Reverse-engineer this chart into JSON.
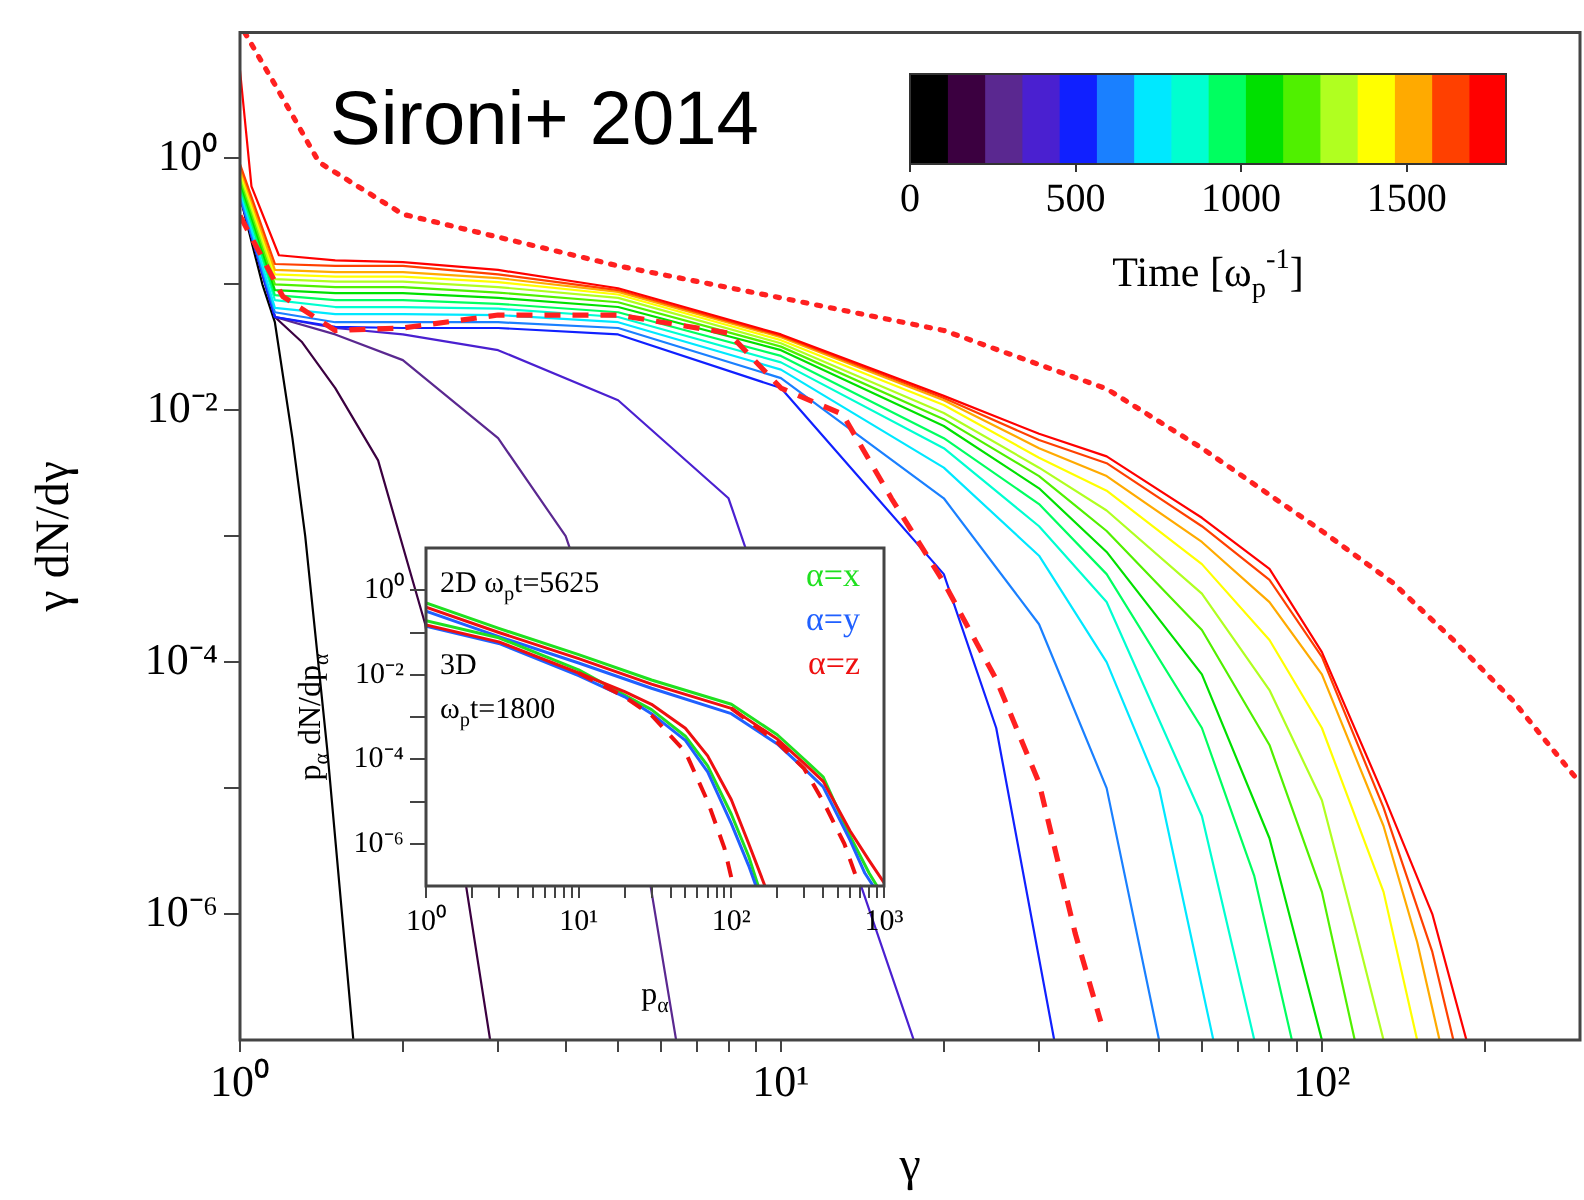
{
  "chart_data": [
    {
      "type": "line",
      "xlabel": "γ",
      "ylabel": "γ dN/dγ",
      "log": "xy",
      "marker": "none",
      "annotations": [
        "Sironi+ 2014"
      ],
      "xlim": [
        1,
        300
      ],
      "ylim": [
        1e-07,
        10
      ],
      "xticks": [
        {
          "value": 1,
          "label": "10⁰"
        },
        {
          "value": 2,
          "label": null
        },
        {
          "value": 3,
          "label": null
        },
        {
          "value": 4,
          "label": null
        },
        {
          "value": 5,
          "label": null
        },
        {
          "value": 6,
          "label": null
        },
        {
          "value": 7,
          "label": null
        },
        {
          "value": 8,
          "label": null
        },
        {
          "value": 9,
          "label": null
        },
        {
          "value": 10,
          "label": "10¹"
        },
        {
          "value": 20,
          "label": null
        },
        {
          "value": 30,
          "label": null
        },
        {
          "value": 40,
          "label": null
        },
        {
          "value": 50,
          "label": null
        },
        {
          "value": 60,
          "label": null
        },
        {
          "value": 70,
          "label": null
        },
        {
          "value": 80,
          "label": null
        },
        {
          "value": 90,
          "label": null
        },
        {
          "value": 100,
          "label": "10²"
        },
        {
          "value": 200,
          "label": null
        }
      ],
      "yticks": [
        {
          "value": 1,
          "label": "10⁰"
        },
        {
          "value": 0.1,
          "label": null
        },
        {
          "value": 0.01,
          "label": "10⁻²"
        },
        {
          "value": 0.001,
          "label": null
        },
        {
          "value": 0.0001,
          "label": "10⁻⁴"
        },
        {
          "value": 1e-05,
          "label": null
        },
        {
          "value": 1e-06,
          "label": "10⁻⁶"
        }
      ],
      "series": [
        {
          "color": "#000000",
          "x": [
            1,
            1.1,
            1.16,
            1.25,
            1.32,
            1.45,
            1.62
          ],
          "values": [
            0.5,
            0.1,
            0.05,
            0.006,
            0.001,
            2e-05,
            1e-07
          ]
        },
        {
          "color": "#3b0040",
          "x": [
            1,
            1.16,
            1.3,
            1.5,
            1.8,
            2.2,
            2.9
          ],
          "values": [
            0.5,
            0.055,
            0.035,
            0.015,
            0.004,
            0.0002,
            1e-07
          ]
        },
        {
          "color": "#5a2890",
          "x": [
            1,
            1.16,
            1.5,
            2,
            3,
            4,
            5,
            6.4
          ],
          "values": [
            0.5,
            0.055,
            0.04,
            0.025,
            0.006,
            0.001,
            6e-05,
            1e-07
          ]
        },
        {
          "color": "#4a20d0",
          "x": [
            1,
            1.16,
            1.5,
            2,
            3,
            5,
            8,
            17.6
          ],
          "values": [
            0.5,
            0.055,
            0.045,
            0.04,
            0.03,
            0.012,
            0.002,
            1e-07
          ]
        },
        {
          "color": "#1020ff",
          "x": [
            1,
            1.16,
            1.5,
            2,
            3,
            5,
            10,
            20,
            25,
            32
          ],
          "values": [
            0.5,
            0.055,
            0.046,
            0.045,
            0.045,
            0.04,
            0.015,
            0.0005,
            3e-05,
            1e-07
          ]
        },
        {
          "color": "#1a80ff",
          "x": [
            1,
            1.16,
            1.5,
            2,
            3,
            5,
            10,
            20,
            30,
            40,
            50
          ],
          "values": [
            0.5,
            0.06,
            0.05,
            0.05,
            0.05,
            0.045,
            0.018,
            0.002,
            0.0002,
            1e-05,
            1e-07
          ]
        },
        {
          "color": "#00e8ff",
          "x": [
            1,
            1.16,
            1.5,
            2,
            3,
            5,
            10,
            20,
            30,
            40,
            50,
            63
          ],
          "values": [
            0.55,
            0.065,
            0.058,
            0.058,
            0.057,
            0.05,
            0.021,
            0.0035,
            0.0007,
            0.0001,
            1e-05,
            1e-07
          ]
        },
        {
          "color": "#00ffd0",
          "x": [
            1,
            1.16,
            1.5,
            2,
            3,
            5,
            10,
            20,
            30,
            40,
            60,
            75
          ],
          "values": [
            0.6,
            0.075,
            0.066,
            0.066,
            0.064,
            0.055,
            0.024,
            0.005,
            0.0012,
            0.0003,
            6e-06,
            1e-07
          ]
        },
        {
          "color": "#00ff60",
          "x": [
            1,
            1.16,
            1.5,
            2,
            3,
            5,
            10,
            20,
            30,
            40,
            60,
            75,
            88
          ],
          "values": [
            0.6,
            0.082,
            0.075,
            0.075,
            0.07,
            0.06,
            0.027,
            0.006,
            0.0018,
            0.0005,
            3e-05,
            2e-06,
            1e-07
          ]
        },
        {
          "color": "#00e000",
          "x": [
            1,
            1.16,
            1.5,
            2,
            3,
            5,
            10,
            20,
            30,
            40,
            60,
            80,
            100
          ],
          "values": [
            0.65,
            0.09,
            0.085,
            0.085,
            0.078,
            0.066,
            0.03,
            0.0075,
            0.0024,
            0.00075,
            8e-05,
            4e-06,
            1e-07
          ]
        },
        {
          "color": "#50f000",
          "x": [
            1,
            1.16,
            1.5,
            2,
            3,
            5,
            10,
            20,
            30,
            40,
            60,
            80,
            100,
            115
          ],
          "values": [
            0.7,
            0.1,
            0.095,
            0.095,
            0.086,
            0.072,
            0.032,
            0.0085,
            0.003,
            0.0011,
            0.00018,
            2.2e-05,
            1.5e-06,
            1e-07
          ]
        },
        {
          "color": "#b0ff20",
          "x": [
            1,
            1.16,
            1.5,
            2,
            3,
            5,
            10,
            20,
            30,
            40,
            60,
            80,
            100,
            115,
            130
          ],
          "values": [
            0.75,
            0.11,
            0.105,
            0.105,
            0.095,
            0.078,
            0.034,
            0.0095,
            0.0035,
            0.0016,
            0.00035,
            6e-05,
            8e-06,
            8e-07,
            1e-07
          ]
        },
        {
          "color": "#ffff00",
          "x": [
            1,
            1.16,
            1.5,
            2,
            3,
            5,
            10,
            20,
            30,
            40,
            60,
            80,
            100,
            130,
            150
          ],
          "values": [
            0.8,
            0.12,
            0.115,
            0.115,
            0.104,
            0.083,
            0.036,
            0.011,
            0.0042,
            0.0023,
            0.0006,
            0.00015,
            3e-05,
            1.5e-06,
            1e-07
          ]
        },
        {
          "color": "#ffaa00",
          "x": [
            1,
            1.16,
            1.5,
            2,
            3,
            5,
            10,
            20,
            30,
            40,
            60,
            80,
            100,
            130,
            150,
            165
          ],
          "values": [
            0.85,
            0.13,
            0.125,
            0.125,
            0.112,
            0.087,
            0.038,
            0.012,
            0.005,
            0.003,
            0.0009,
            0.0003,
            8e-05,
            5e-06,
            6e-07,
            1e-07
          ]
        },
        {
          "color": "#ff4000",
          "x": [
            1,
            1.16,
            1.5,
            2,
            3,
            5,
            10,
            20,
            30,
            40,
            60,
            80,
            100,
            130,
            160,
            175
          ],
          "values": [
            0.9,
            0.145,
            0.14,
            0.14,
            0.12,
            0.09,
            0.039,
            0.0125,
            0.0058,
            0.0038,
            0.0012,
            0.00045,
            0.00011,
            7e-06,
            5e-07,
            1e-07
          ]
        },
        {
          "color": "#ff0000",
          "x": [
            1,
            1.05,
            1.18,
            1.5,
            2,
            3,
            5,
            10,
            20,
            30,
            40,
            60,
            80,
            100,
            130,
            160,
            185
          ],
          "values": [
            5,
            0.6,
            0.17,
            0.155,
            0.15,
            0.13,
            0.093,
            0.04,
            0.013,
            0.0065,
            0.0043,
            0.0014,
            0.00055,
            0.00012,
            8.8e-06,
            1e-06,
            1e-07
          ]
        },
        {
          "color": "#ff2020",
          "line_style": "dashed",
          "x": [
            1,
            1.2,
            1.5,
            2,
            3,
            5,
            8,
            10,
            13,
            16,
            20,
            25,
            30,
            35,
            39
          ],
          "values": [
            0.35,
            0.08,
            0.043,
            0.045,
            0.057,
            0.057,
            0.041,
            0.015,
            0.0093,
            0.002,
            0.00043,
            7.3e-05,
            1.1e-05,
            7e-07,
            1.4e-07
          ]
        },
        {
          "color": "#ff2020",
          "line_style": "dotted",
          "x": [
            1.02,
            1.18,
            1.4,
            2,
            5,
            10,
            20,
            40,
            60,
            100,
            135,
            175,
            225,
            300
          ],
          "values": [
            10,
            3.4,
            0.93,
            0.36,
            0.14,
            0.078,
            0.043,
            0.0148,
            0.005,
            0.0011,
            0.00043,
            0.00015,
            5e-05,
            1.1e-05
          ]
        }
      ]
    },
    {
      "type": "line",
      "xlabel": "p$_{α}$",
      "ylabel": "p$_{α}$ dN/dp$_{α}$",
      "log": "xy",
      "marker": "none",
      "legend": "top right",
      "annotations": [
        "2D ω$_{p}$t=5625",
        "3D",
        "ω$_{p}$t=1800"
      ],
      "xlim": [
        1,
        1000
      ],
      "ylim": [
        1e-07,
        10
      ],
      "xticks": [
        {
          "value": 1,
          "label": "10⁰"
        },
        {
          "value": 2,
          "label": null
        },
        {
          "value": 3,
          "label": null
        },
        {
          "value": 4,
          "label": null
        },
        {
          "value": 5,
          "label": null
        },
        {
          "value": 6,
          "label": null
        },
        {
          "value": 7,
          "label": null
        },
        {
          "value": 8,
          "label": null
        },
        {
          "value": 9,
          "label": null
        },
        {
          "value": 10,
          "label": "10¹"
        },
        {
          "value": 20,
          "label": null
        },
        {
          "value": 30,
          "label": null
        },
        {
          "value": 40,
          "label": null
        },
        {
          "value": 50,
          "label": null
        },
        {
          "value": 60,
          "label": null
        },
        {
          "value": 70,
          "label": null
        },
        {
          "value": 80,
          "label": null
        },
        {
          "value": 90,
          "label": null
        },
        {
          "value": 100,
          "label": "10²"
        },
        {
          "value": 200,
          "label": null
        },
        {
          "value": 300,
          "label": null
        },
        {
          "value": 400,
          "label": null
        },
        {
          "value": 500,
          "label": null
        },
        {
          "value": 600,
          "label": null
        },
        {
          "value": 700,
          "label": null
        },
        {
          "value": 800,
          "label": null
        },
        {
          "value": 900,
          "label": null
        },
        {
          "value": 1000,
          "label": "10³"
        }
      ],
      "yticks": [
        {
          "value": 1,
          "label": "10⁰"
        },
        {
          "value": 0.1,
          "label": null
        },
        {
          "value": 0.01,
          "label": "10⁻²"
        },
        {
          "value": 0.001,
          "label": null
        },
        {
          "value": 0.0001,
          "label": "10⁻⁴"
        },
        {
          "value": 1e-05,
          "label": null
        },
        {
          "value": 1e-06,
          "label": "10⁻⁶"
        }
      ],
      "series": [
        {
          "name": "α=x",
          "color": "#20e020",
          "x": [
            1,
            3,
            10,
            30,
            100,
            200,
            300,
            400,
            600,
            800,
            900
          ],
          "values": [
            0.5,
            0.125,
            0.03,
            0.0075,
            0.002,
            0.00038,
            0.0001,
            3.8e-05,
            1.5e-06,
            2e-07,
            1e-07
          ]
        },
        {
          "name": "α=y",
          "color": "#2060ff",
          "x": [
            1,
            3,
            10,
            30,
            100,
            200,
            300,
            400,
            600,
            750,
            850
          ],
          "values": [
            0.32,
            0.08,
            0.019,
            0.0048,
            0.0012,
            0.00023,
            6e-05,
            2.2e-05,
            1.2e-06,
            2e-07,
            1e-07
          ]
        },
        {
          "name": "α=z",
          "color": "#ee1010",
          "x": [
            1,
            3,
            10,
            30,
            100,
            200,
            300,
            400,
            600,
            800,
            1000
          ],
          "values": [
            0.4,
            0.1,
            0.024,
            0.006,
            0.0016,
            0.0003,
            8e-05,
            3e-05,
            2e-06,
            4e-07,
            1.2e-07
          ]
        },
        {
          "color": "#ee1010",
          "line_style": "dashed",
          "x": [
            100,
            200,
            300,
            400,
            550,
            690
          ],
          "values": [
            0.0016,
            0.00025,
            6e-05,
            1e-05,
            1e-06,
            1e-07
          ]
        },
        {
          "color": "#20e020",
          "x": [
            1,
            3,
            10,
            20,
            30,
            50,
            70,
            100,
            130,
            150
          ],
          "values": [
            0.19,
            0.075,
            0.013,
            0.0033,
            0.0015,
            0.00035,
            7e-05,
            5e-06,
            5e-07,
            1e-07
          ]
        },
        {
          "color": "#2060ff",
          "x": [
            1,
            3,
            10,
            20,
            30,
            50,
            70,
            100,
            130,
            145
          ],
          "values": [
            0.14,
            0.055,
            0.0095,
            0.003,
            0.0012,
            0.00028,
            5e-05,
            3e-06,
            3e-07,
            1e-07
          ]
        },
        {
          "color": "#ee1010",
          "x": [
            1,
            3,
            10,
            20,
            30,
            50,
            70,
            100,
            130,
            166
          ],
          "values": [
            0.15,
            0.06,
            0.011,
            0.004,
            0.002,
            0.00054,
            0.00012,
            1.1e-05,
            1e-06,
            1e-07
          ]
        },
        {
          "color": "#ee1010",
          "line_style": "dashed",
          "x": [
            10,
            20,
            30,
            50,
            70,
            90,
            103
          ],
          "values": [
            0.011,
            0.003,
            0.0011,
            0.00015,
            1e-05,
            8e-07,
            1e-07
          ]
        }
      ]
    },
    {
      "type": "bar",
      "orientation": "horizontal",
      "stacked": true,
      "categories": [
        null
      ],
      "xlabel": "Time [ω$_{p}$$^{-1}$]",
      "xlim": [
        0,
        1800
      ],
      "xticks": [
        0,
        500,
        1000,
        1500
      ],
      "series": [
        {
          "color": "#000000",
          "values": [
            112.5
          ]
        },
        {
          "color": "#3b0040",
          "values": [
            112.5
          ]
        },
        {
          "color": "#5a2890",
          "values": [
            112.5
          ]
        },
        {
          "color": "#4a20d0",
          "values": [
            112.5
          ]
        },
        {
          "color": "#1020ff",
          "values": [
            112.5
          ]
        },
        {
          "color": "#1a80ff",
          "values": [
            112.5
          ]
        },
        {
          "color": "#00e8ff",
          "values": [
            112.5
          ]
        },
        {
          "color": "#00ffd0",
          "values": [
            112.5
          ]
        },
        {
          "color": "#00ff60",
          "values": [
            112.5
          ]
        },
        {
          "color": "#00e000",
          "values": [
            112.5
          ]
        },
        {
          "color": "#50f000",
          "values": [
            112.5
          ]
        },
        {
          "color": "#b0ff20",
          "values": [
            112.5
          ]
        },
        {
          "color": "#ffff00",
          "values": [
            112.5
          ]
        },
        {
          "color": "#ffaa00",
          "values": [
            112.5
          ]
        },
        {
          "color": "#ff4000",
          "values": [
            112.5
          ]
        },
        {
          "color": "#ff0000",
          "values": [
            112.5
          ]
        }
      ]
    }
  ]
}
